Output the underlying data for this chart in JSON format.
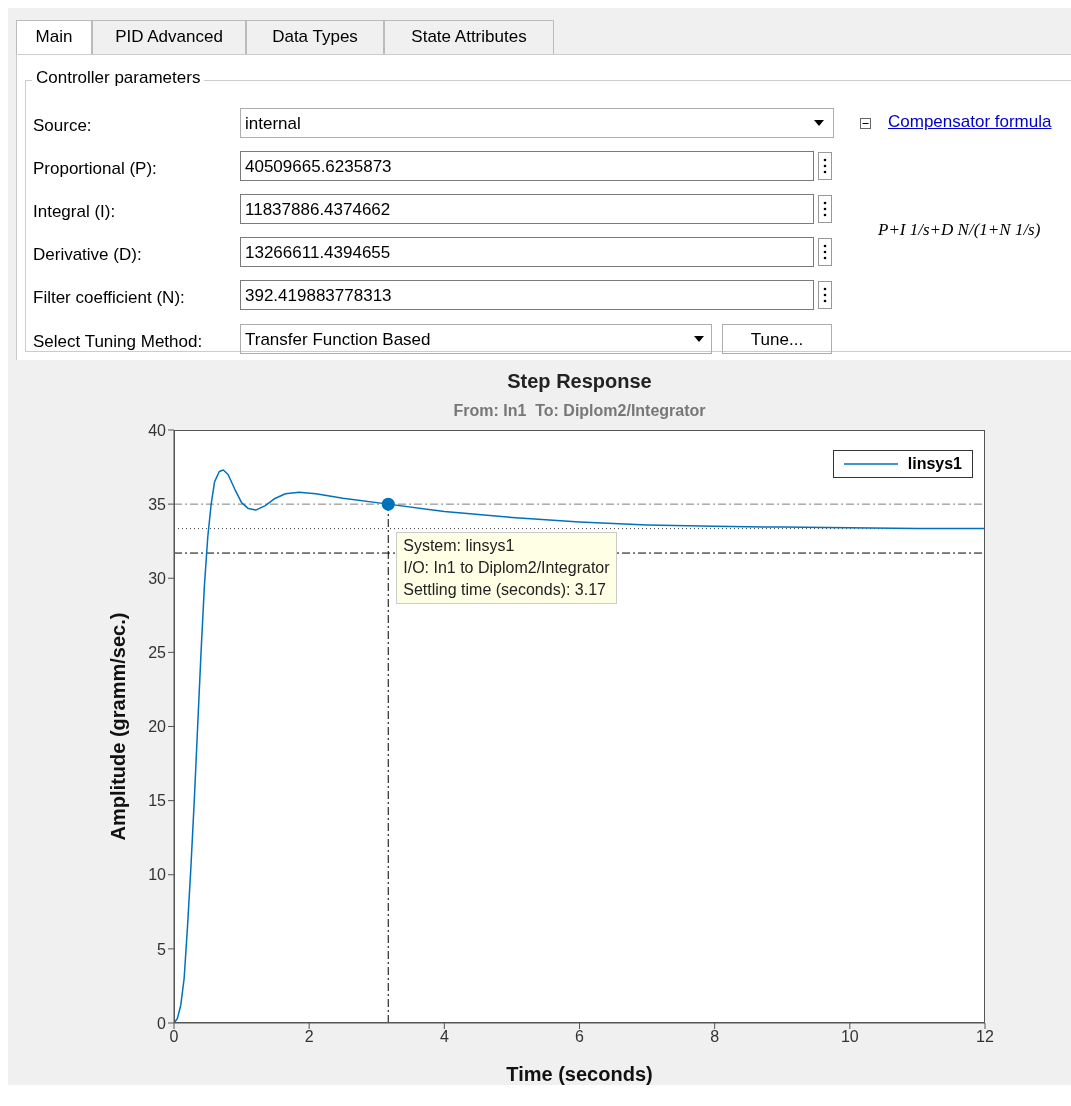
{
  "chart_data": [
    {
      "type": "other",
      "annotations": [
        "Main",
        "PID Advanced",
        "Data Types",
        "State Attributes",
        "Controller parameters",
        "Source:",
        "internal",
        "Compensator formula",
        "Proportional (P):",
        "40509665.6235873",
        "Integral (I):",
        "11837886.4374662",
        "Derivative (D):",
        "13266611.4394655",
        "Filter coefficient (N):",
        "392.419883778313",
        "P+I 1/s+D N/(1+N 1/s)",
        "Select Tuning Method:",
        "Transfer Function Based",
        "Tune..."
      ]
    },
    {
      "type": "line",
      "title": "Step Response",
      "subtitle": "From: In1  To: Diplom2/Integrator",
      "xlabel": "Time (seconds)",
      "ylabel": "Amplitude (gramm/sec.)",
      "series": [
        {
          "name": "linsys1",
          "color": "#0072bd",
          "x": [
            0,
            0.05,
            0.1,
            0.15,
            0.2,
            0.25,
            0.3,
            0.35,
            0.4,
            0.45,
            0.5,
            0.55,
            0.6,
            0.67,
            0.73,
            0.8,
            0.9,
            1.0,
            1.1,
            1.21,
            1.35,
            1.5,
            1.65,
            1.85,
            2.1,
            2.5,
            3.17,
            4,
            5,
            6,
            7,
            8,
            9,
            10,
            11,
            12
          ],
          "values": [
            0,
            0.3,
            1.2,
            3,
            6.5,
            10.5,
            15,
            20,
            25,
            29.5,
            32.8,
            35,
            36.5,
            37.2,
            37.3,
            37,
            36,
            35.1,
            34.7,
            34.6,
            34.9,
            35.4,
            35.7,
            35.8,
            35.7,
            35.4,
            35,
            34.5,
            34.1,
            33.8,
            33.6,
            33.5,
            33.45,
            33.4,
            33.35,
            33.35
          ]
        },
        {
          "type": "scatter",
          "color": "#0072bd",
          "marker": "circle",
          "x": [
            3.17
          ],
          "values": [
            35
          ]
        }
      ],
      "xlim": [
        0,
        12
      ],
      "xticks": [
        0,
        2,
        4,
        6,
        8,
        10,
        12
      ],
      "ylim": [
        0,
        40
      ],
      "yticks": [
        0,
        5,
        10,
        15,
        20,
        25,
        30,
        35,
        40
      ],
      "grid": false,
      "legend": "top right",
      "ref_lines": [
        {
          "axis": "y",
          "value": 35,
          "color": "#808080",
          "line_style": "dashed"
        },
        {
          "axis": "y",
          "value": 33.35,
          "color": "#404040",
          "line_style": "dotted"
        },
        {
          "axis": "y",
          "value": 31.7,
          "color": "#000000",
          "line_style": "dashed"
        },
        {
          "axis": "x",
          "value": 3.17,
          "color": "#000000",
          "line_style": "dashed"
        }
      ],
      "annotations": [
        {
          "text": "System: linsys1\nI/O: In1 to Diplom2/Integrator\nSettling time (seconds): 3.17",
          "x": 3.17,
          "y": 35
        }
      ]
    }
  ]
}
